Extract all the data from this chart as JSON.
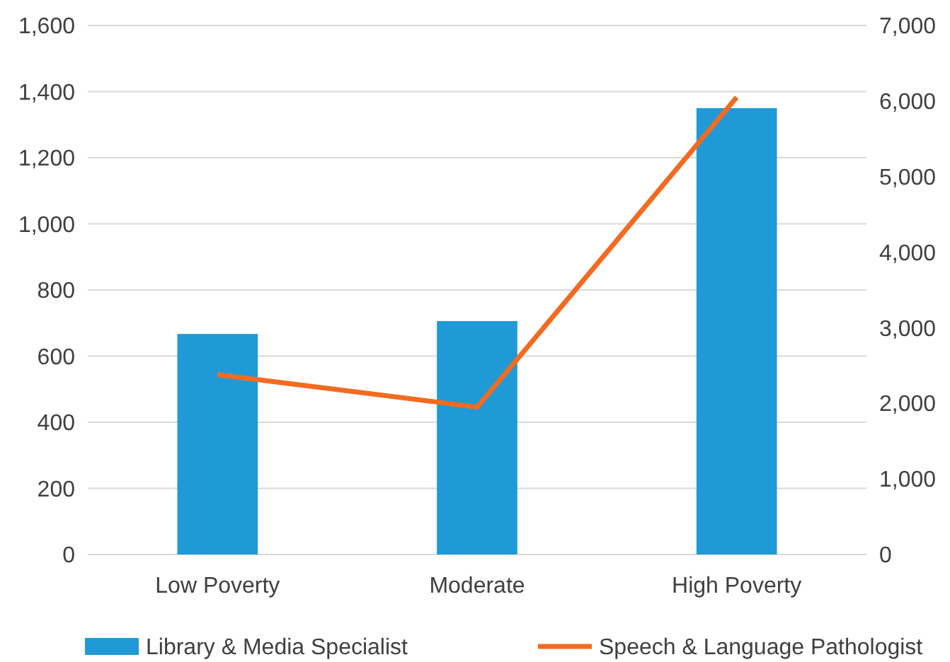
{
  "chart_data": {
    "type": "bar",
    "categories": [
      "Low Poverty",
      "Moderate",
      "High Poverty"
    ],
    "series": [
      {
        "name": "Library & Media Specialist",
        "color": "#1f9ad6",
        "values": [
          667,
          706,
          1350
        ]
      },
      {
        "name": "Speech & Language Pathologist",
        "color": "#f26b21",
        "type": "line",
        "axis": "y2",
        "values": [
          2380,
          1950,
          6050
        ]
      }
    ],
    "ylim": [
      0,
      1600
    ],
    "yticks": [
      {
        "value": 0,
        "label": "0"
      },
      {
        "value": 200,
        "label": "200"
      },
      {
        "value": 400,
        "label": "400"
      },
      {
        "value": 600,
        "label": "600"
      },
      {
        "value": 800,
        "label": "800"
      },
      {
        "value": 1000,
        "label": "1,000"
      },
      {
        "value": 1200,
        "label": "1,200"
      },
      {
        "value": 1400,
        "label": "1,400"
      },
      {
        "value": 1600,
        "label": "1,600"
      }
    ],
    "y2lim": [
      0,
      7000
    ],
    "y2ticks": [
      {
        "value": 0,
        "label": "0"
      },
      {
        "value": 1000,
        "label": "1,000"
      },
      {
        "value": 2000,
        "label": "2,000"
      },
      {
        "value": 3000,
        "label": "3,000"
      },
      {
        "value": 4000,
        "label": "4,000"
      },
      {
        "value": 5000,
        "label": "5,000"
      },
      {
        "value": 6000,
        "label": "6,000"
      },
      {
        "value": 7000,
        "label": "7,000"
      }
    ],
    "grid": "y",
    "legend": "bottom",
    "marker": "none"
  }
}
